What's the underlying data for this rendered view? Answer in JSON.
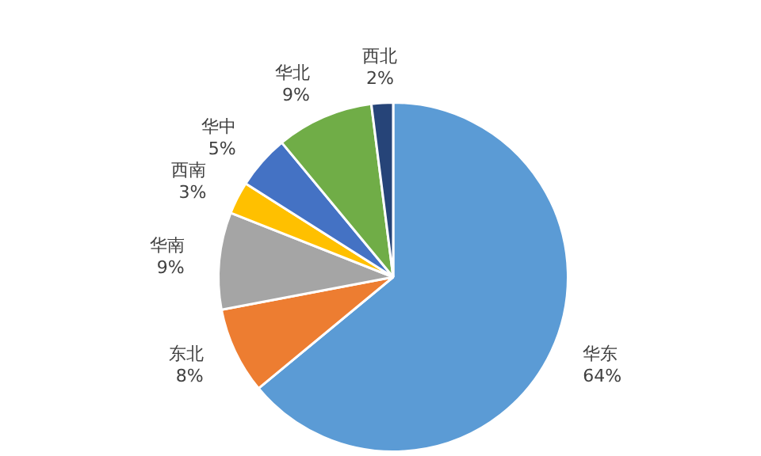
{
  "chart_data": {
    "type": "pie",
    "categories": [
      "华东",
      "东北",
      "华南",
      "西南",
      "华中",
      "华北",
      "西北"
    ],
    "values": [
      64,
      8,
      9,
      3,
      5,
      9,
      2
    ],
    "value_labels": [
      "64%",
      "8%",
      "9%",
      "3%",
      "5%",
      "9%",
      "2%"
    ],
    "colors": [
      "#5b9bd5",
      "#ed7d31",
      "#a5a5a5",
      "#ffc000",
      "#4472c4",
      "#70ad47",
      "#264478"
    ],
    "legend": false
  }
}
